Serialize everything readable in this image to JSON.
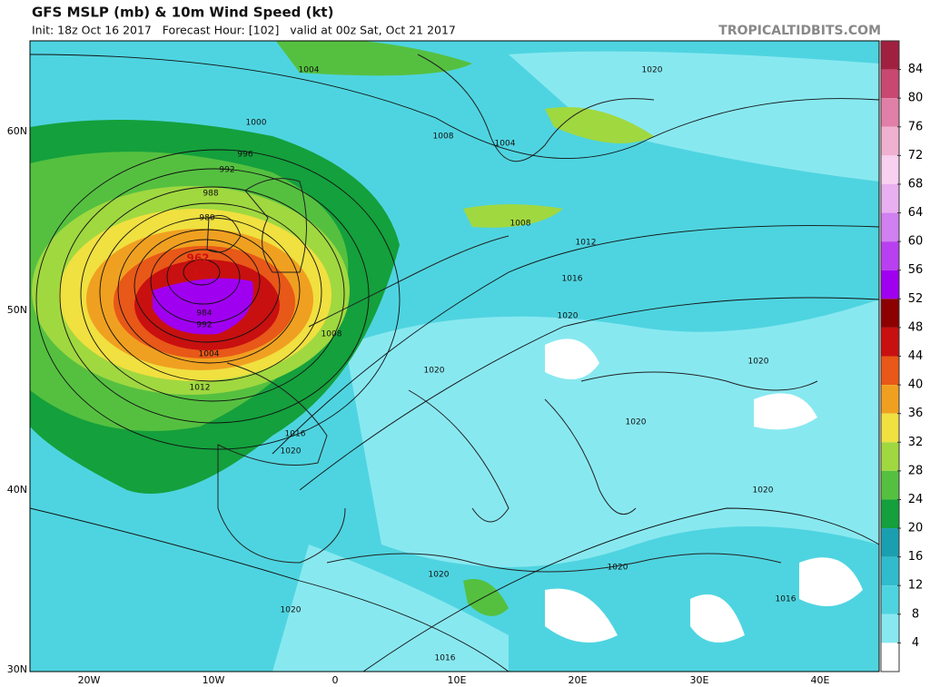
{
  "header": {
    "title": "GFS MSLP (mb) & 10m Wind Speed (kt)",
    "subtitle": "Init: 18z Oct 16 2017   Forecast Hour: [102]   valid at 00z Sat, Oct 21 2017",
    "site": "TROPICALTIDBITS.COM"
  },
  "map": {
    "lat_labels": [
      "60N",
      "50N",
      "40N",
      "30N"
    ],
    "lon_labels": [
      "20W",
      "10W",
      "0",
      "10E",
      "20E",
      "30E",
      "40E"
    ],
    "low": {
      "pressure": "962",
      "symbol": "L"
    },
    "pressure_labels": [
      "1004",
      "1000",
      "996",
      "992",
      "988",
      "980",
      "984",
      "992",
      "1004",
      "1012",
      "1016",
      "1020",
      "1008",
      "1004",
      "1008",
      "1012",
      "1016",
      "1020",
      "1008",
      "1020",
      "1020",
      "1020",
      "1020",
      "1020",
      "1020",
      "1020",
      "1016",
      "1016",
      "1020"
    ]
  },
  "colorbar": {
    "ticks": [
      84,
      80,
      76,
      72,
      68,
      64,
      60,
      56,
      52,
      48,
      44,
      40,
      36,
      32,
      28,
      24,
      20,
      16,
      12,
      8,
      4
    ],
    "colors": [
      "#a02040",
      "#c84870",
      "#e080a8",
      "#f0b0d0",
      "#f8d0f0",
      "#e8b0f0",
      "#d080f0",
      "#b840f0",
      "#a000f0",
      "#8c0000",
      "#c81010",
      "#e85818",
      "#f0a020",
      "#f0e040",
      "#a0d840",
      "#55c040",
      "#14a03c",
      "#1a9fb0",
      "#30bccc",
      "#4ed4e0",
      "#88e8f0",
      "#ffffff"
    ]
  }
}
